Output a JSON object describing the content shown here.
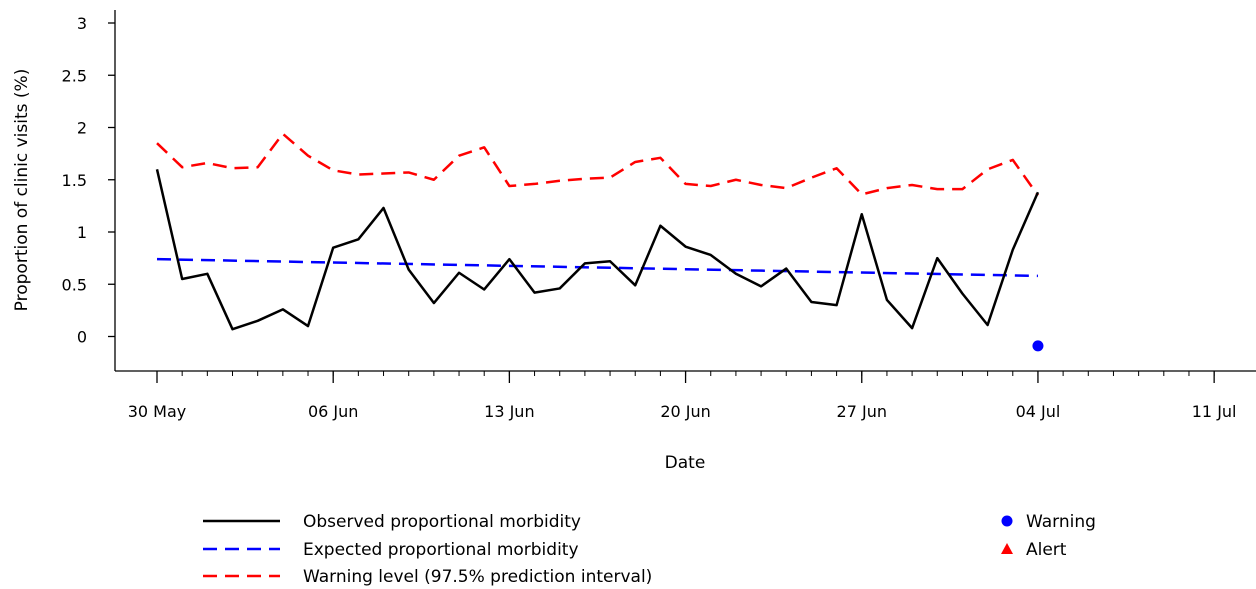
{
  "chart_data": {
    "type": "line",
    "xlabel": "Date",
    "ylabel": "Proportion of clinic visits (%)",
    "ylim": [
      -0.3,
      3.15
    ],
    "xlim": [
      "2023-05-28",
      "2023-07-12"
    ],
    "y_ticks": [
      0,
      0.5,
      1,
      1.5,
      2,
      2.5,
      3
    ],
    "y_tick_labels": [
      "0",
      "0.5",
      "1",
      "1.5",
      "2",
      "2.5",
      "3"
    ],
    "x_major_ticks": [
      "2023-05-30",
      "2023-06-06",
      "2023-06-13",
      "2023-06-20",
      "2023-06-27",
      "2023-07-04",
      "2023-07-11"
    ],
    "x_tick_labels": [
      "30 May",
      "06 Jun",
      "13 Jun",
      "20 Jun",
      "27 Jun",
      "04 Jul",
      "11 Jul"
    ],
    "grid": false,
    "series": [
      {
        "name": "Observed proportional morbidity",
        "color": "#000000",
        "style": "solid",
        "x": [
          "2023-05-30",
          "2023-05-31",
          "2023-06-01",
          "2023-06-02",
          "2023-06-03",
          "2023-06-04",
          "2023-06-05",
          "2023-06-06",
          "2023-06-07",
          "2023-06-08",
          "2023-06-09",
          "2023-06-10",
          "2023-06-11",
          "2023-06-12",
          "2023-06-13",
          "2023-06-14",
          "2023-06-15",
          "2023-06-16",
          "2023-06-17",
          "2023-06-18",
          "2023-06-19",
          "2023-06-20",
          "2023-06-21",
          "2023-06-22",
          "2023-06-23",
          "2023-06-24",
          "2023-06-25",
          "2023-06-26",
          "2023-06-27",
          "2023-06-28",
          "2023-06-29",
          "2023-06-30",
          "2023-07-01",
          "2023-07-02",
          "2023-07-03",
          "2023-07-04"
        ],
        "values": [
          1.6,
          0.55,
          0.6,
          0.07,
          0.15,
          0.26,
          0.1,
          0.85,
          0.93,
          1.23,
          0.64,
          0.32,
          0.61,
          0.45,
          0.74,
          0.42,
          0.46,
          0.7,
          0.72,
          0.49,
          1.06,
          0.86,
          0.78,
          0.6,
          0.48,
          0.65,
          0.33,
          0.3,
          1.17,
          0.35,
          0.08,
          0.75,
          0.41,
          0.11,
          0.83,
          1.38
        ]
      },
      {
        "name": "Expected proportional morbidity",
        "color": "#0000ff",
        "style": "dashed",
        "x": [
          "2023-05-30",
          "2023-07-04"
        ],
        "values": [
          0.74,
          0.58
        ]
      },
      {
        "name": "Warning level (97.5% prediction interval)",
        "color": "#ff0000",
        "style": "dashed",
        "x": [
          "2023-05-30",
          "2023-05-31",
          "2023-06-01",
          "2023-06-02",
          "2023-06-03",
          "2023-06-04",
          "2023-06-05",
          "2023-06-06",
          "2023-06-07",
          "2023-06-08",
          "2023-06-09",
          "2023-06-10",
          "2023-06-11",
          "2023-06-12",
          "2023-06-13",
          "2023-06-14",
          "2023-06-15",
          "2023-06-16",
          "2023-06-17",
          "2023-06-18",
          "2023-06-19",
          "2023-06-20",
          "2023-06-21",
          "2023-06-22",
          "2023-06-23",
          "2023-06-24",
          "2023-06-25",
          "2023-06-26",
          "2023-06-27",
          "2023-06-28",
          "2023-06-29",
          "2023-06-30",
          "2023-07-01",
          "2023-07-02",
          "2023-07-03",
          "2023-07-04"
        ],
        "values": [
          1.85,
          1.62,
          1.66,
          1.61,
          1.62,
          1.94,
          1.73,
          1.59,
          1.55,
          1.56,
          1.57,
          1.5,
          1.73,
          1.81,
          1.44,
          1.46,
          1.49,
          1.51,
          1.52,
          1.67,
          1.71,
          1.46,
          1.44,
          1.5,
          1.45,
          1.42,
          1.52,
          1.61,
          1.36,
          1.42,
          1.45,
          1.41,
          1.41,
          1.6,
          1.69,
          1.35
        ]
      }
    ],
    "markers": [
      {
        "name": "Warning",
        "color": "#0000ff",
        "shape": "circle",
        "x": "2023-07-04",
        "value": -0.09
      }
    ],
    "legend": {
      "placement": "bottom",
      "lines": [
        {
          "label": "Observed proportional morbidity",
          "color": "#000000",
          "style": "solid"
        },
        {
          "label": "Expected proportional morbidity",
          "color": "#0000ff",
          "style": "dashed"
        },
        {
          "label": "Warning level (97.5% prediction interval)",
          "color": "#ff0000",
          "style": "dashed"
        }
      ],
      "symbols": [
        {
          "label": "Warning",
          "color": "#0000ff",
          "shape": "circle"
        },
        {
          "label": "Alert",
          "color": "#ff0000",
          "shape": "triangle"
        }
      ]
    }
  }
}
